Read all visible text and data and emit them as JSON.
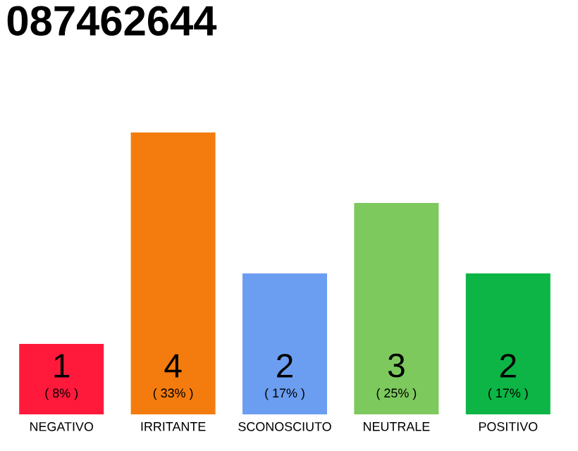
{
  "chart_data": {
    "type": "bar",
    "title": "087462644",
    "categories": [
      "NEGATIVO",
      "IRRITANTE",
      "SCONOSCIUTO",
      "NEUTRALE",
      "POSITIVO"
    ],
    "values": [
      1,
      4,
      2,
      3,
      2
    ],
    "colors": [
      "#ff1a3c",
      "#f47c0e",
      "#6b9ef0",
      "#7dc95e",
      "#0cb545"
    ],
    "ylim": [
      0,
      4
    ],
    "tick_labels": "x",
    "data_labels": true,
    "annotations": [
      {
        "text": "( 8% )",
        "x": "NEGATIVO",
        "y": 0
      },
      {
        "text": "( 33% )",
        "x": "IRRITANTE",
        "y": 0
      },
      {
        "text": "( 17% )",
        "x": "SCONOSCIUTO",
        "y": 0
      },
      {
        "text": "( 25% )",
        "x": "NEUTRALE",
        "y": 0
      },
      {
        "text": "( 17% )",
        "x": "POSITIVO",
        "y": 0
      }
    ]
  }
}
